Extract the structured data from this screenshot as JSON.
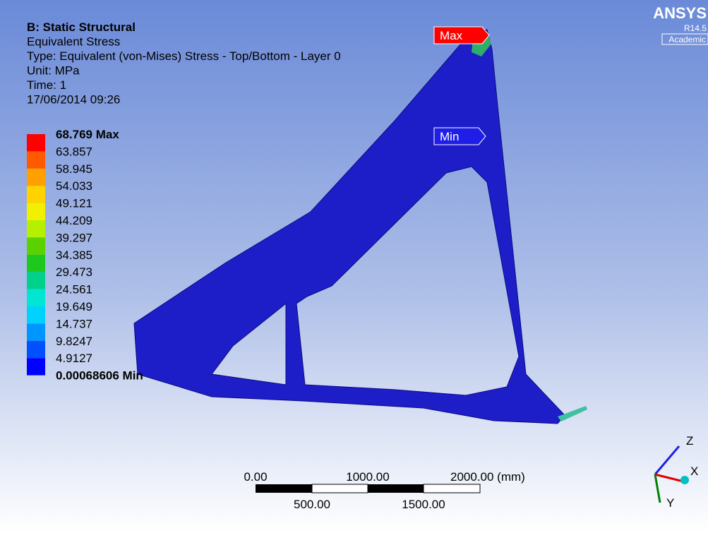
{
  "header": {
    "lines": [
      "B: Static Structural",
      "Equivalent Stress",
      "Type: Equivalent (von-Mises) Stress - Top/Bottom - Layer 0",
      "Unit: MPa",
      "Time: 1",
      "17/06/2014 09:26"
    ]
  },
  "legend": {
    "entries": [
      {
        "label": "68.769 Max",
        "color": "#ff0000"
      },
      {
        "label": "63.857",
        "color": "#ff5a00"
      },
      {
        "label": "58.945",
        "color": "#ffa000"
      },
      {
        "label": "54.033",
        "color": "#ffd200"
      },
      {
        "label": "49.121",
        "color": "#f0f000"
      },
      {
        "label": "44.209",
        "color": "#b4f000"
      },
      {
        "label": "39.297",
        "color": "#5ad200"
      },
      {
        "label": "34.385",
        "color": "#1ec81e"
      },
      {
        "label": "29.473",
        "color": "#00d28c"
      },
      {
        "label": "24.561",
        "color": "#00e6d2"
      },
      {
        "label": "19.649",
        "color": "#00d2ff"
      },
      {
        "label": "14.737",
        "color": "#0096ff"
      },
      {
        "label": "9.8247",
        "color": "#0050ff"
      },
      {
        "label": "4.9127",
        "color": "#0000ff"
      },
      {
        "label": "0.00068606 Min"
      }
    ]
  },
  "probes": {
    "max": "Max",
    "min": "Min"
  },
  "logo": {
    "name": "ANSYS",
    "version": "R14.5",
    "edition": "Academic"
  },
  "scale_bar": {
    "top": [
      "0.00",
      "1000.00",
      "2000.00 (mm)"
    ],
    "bottom": [
      "500.00",
      "1500.00"
    ]
  },
  "triad": {
    "z": "Z",
    "x": "X",
    "y": "Y"
  }
}
